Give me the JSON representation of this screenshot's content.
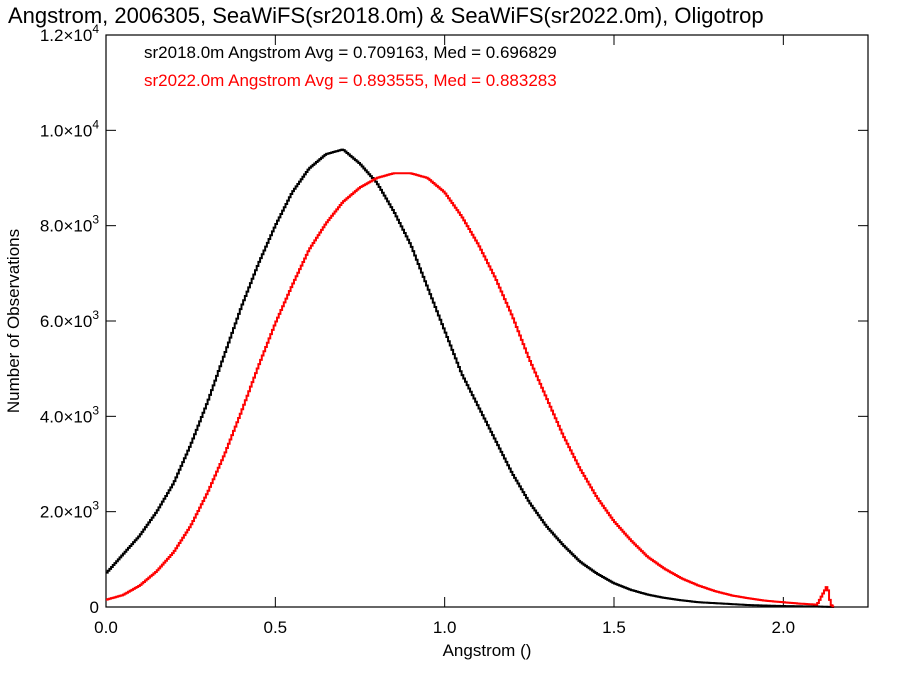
{
  "chart_data": {
    "type": "line",
    "title": "Angstrom, 2006305, SeaWiFS(sr2018.0m) & SeaWiFS(sr2022.0m), Oligotrop",
    "xlabel": "Angstrom ()",
    "ylabel": "Number of Observations",
    "xlim": [
      0.0,
      2.25
    ],
    "ylim": [
      0,
      12000
    ],
    "x_ticks": [
      {
        "value": 0.0,
        "label": "0.0"
      },
      {
        "value": 0.5,
        "label": "0.5"
      },
      {
        "value": 1.0,
        "label": "1.0"
      },
      {
        "value": 1.5,
        "label": "1.5"
      },
      {
        "value": 2.0,
        "label": "2.0"
      }
    ],
    "y_ticks": [
      {
        "value": 0,
        "mant": "0",
        "exp": ""
      },
      {
        "value": 2000,
        "mant": "2.0×10",
        "exp": "3"
      },
      {
        "value": 4000,
        "mant": "4.0×10",
        "exp": "3"
      },
      {
        "value": 6000,
        "mant": "6.0×10",
        "exp": "3"
      },
      {
        "value": 8000,
        "mant": "8.0×10",
        "exp": "3"
      },
      {
        "value": 10000,
        "mant": "1.0×10",
        "exp": "4"
      },
      {
        "value": 12000,
        "mant": "1.2×10",
        "exp": "4"
      }
    ],
    "annotations": [
      {
        "text": "sr2018.0m Angstrom Avg = 0.709163, Med = 0.696829",
        "color": "#000000"
      },
      {
        "text": "sr2022.0m Angstrom Avg = 0.893555, Med = 0.883283",
        "color": "#ff0000"
      }
    ],
    "series": [
      {
        "color": "#000000",
        "x": [
          0.0,
          0.05,
          0.1,
          0.15,
          0.2,
          0.25,
          0.3,
          0.35,
          0.4,
          0.45,
          0.5,
          0.55,
          0.6,
          0.65,
          0.7,
          0.75,
          0.8,
          0.85,
          0.9,
          0.95,
          1.0,
          1.05,
          1.1,
          1.15,
          1.2,
          1.25,
          1.3,
          1.35,
          1.4,
          1.45,
          1.5,
          1.55,
          1.6,
          1.65,
          1.7,
          1.75,
          1.8,
          1.85,
          1.9,
          1.95,
          2.0,
          2.05,
          2.1,
          2.15
        ],
        "values": [
          700,
          1100,
          1500,
          2000,
          2600,
          3400,
          4300,
          5300,
          6300,
          7200,
          8000,
          8700,
          9200,
          9500,
          9600,
          9300,
          8900,
          8300,
          7600,
          6700,
          5800,
          4900,
          4200,
          3500,
          2800,
          2200,
          1700,
          1300,
          950,
          700,
          500,
          360,
          260,
          190,
          140,
          100,
          80,
          60,
          40,
          30,
          20,
          15,
          10,
          0
        ]
      },
      {
        "color": "#ff0000",
        "x": [
          0.0,
          0.05,
          0.1,
          0.15,
          0.2,
          0.25,
          0.3,
          0.35,
          0.4,
          0.45,
          0.5,
          0.55,
          0.6,
          0.65,
          0.7,
          0.75,
          0.8,
          0.85,
          0.9,
          0.95,
          1.0,
          1.05,
          1.1,
          1.15,
          1.2,
          1.25,
          1.3,
          1.35,
          1.4,
          1.45,
          1.5,
          1.55,
          1.6,
          1.65,
          1.7,
          1.75,
          1.8,
          1.85,
          1.9,
          1.95,
          2.0,
          2.05,
          2.1,
          2.13,
          2.14,
          2.15
        ],
        "values": [
          150,
          250,
          450,
          750,
          1150,
          1700,
          2400,
          3200,
          4100,
          5050,
          5950,
          6750,
          7500,
          8050,
          8500,
          8800,
          9000,
          9100,
          9100,
          9000,
          8700,
          8200,
          7600,
          6900,
          6100,
          5200,
          4400,
          3600,
          2900,
          2300,
          1800,
          1400,
          1050,
          800,
          600,
          450,
          330,
          240,
          180,
          130,
          100,
          70,
          50,
          450,
          50,
          0
        ]
      }
    ]
  }
}
